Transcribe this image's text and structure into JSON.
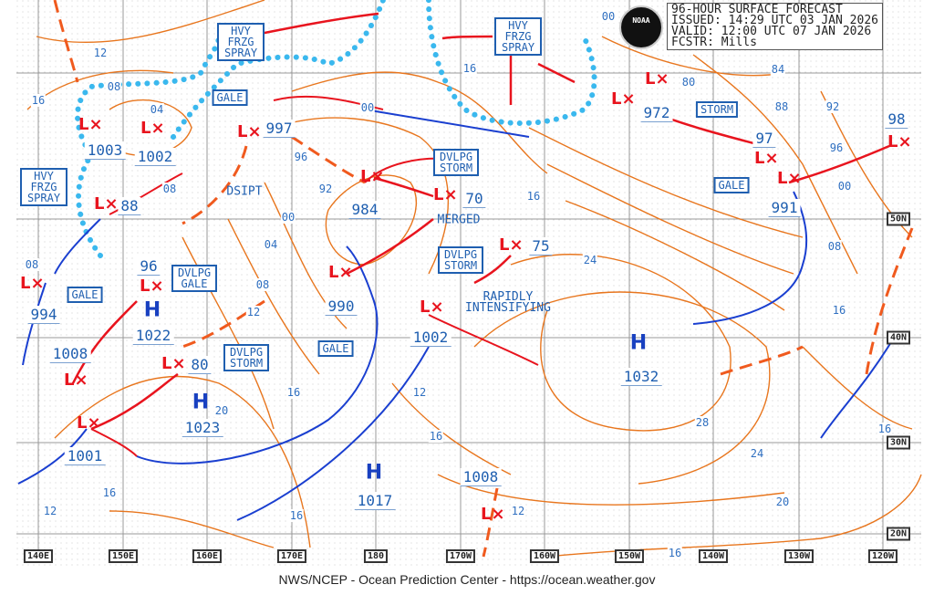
{
  "header": {
    "title": "96-HOUR SURFACE FORECAST",
    "issued": "ISSUED: 14:29 UTC 03 JAN 2026",
    "valid": "VALID:  12:00 UTC 07 JAN 2026",
    "forecaster": "FCSTR:  Mills"
  },
  "logo": "NOAA",
  "footer": "NWS/NCEP - Ocean Prediction Center - https://ocean.weather.gov",
  "longitude_labels": [
    "140E",
    "150E",
    "160E",
    "170E",
    "180",
    "170W",
    "160W",
    "150W",
    "140W",
    "130W",
    "120W"
  ],
  "latitude_labels": [
    "50N",
    "40N",
    "30N",
    "20N"
  ],
  "colors": {
    "isobar": "#e8761e",
    "cold_front": "#1a3fd0",
    "warm_front": "#e8141e",
    "occluded": "#8a2be2",
    "trough": "#f05a1e",
    "freezing_spray": "#3ab8ee",
    "text": "#1f5fb0"
  },
  "lows": [
    "1003",
    "1002",
    "88",
    "997",
    "984",
    "70",
    "75",
    "990",
    "1002",
    "994",
    "1008",
    "1001",
    "972",
    "97",
    "98",
    "991",
    "1008"
  ],
  "highs": [
    {
      "symbol": "H",
      "pressure": "1022"
    },
    {
      "symbol": "H",
      "pressure": "1023"
    },
    {
      "symbol": "H",
      "pressure": "1017"
    },
    {
      "symbol": "H",
      "pressure": "1032"
    }
  ],
  "developing": [
    "96",
    "80"
  ],
  "warnings": {
    "hvy_spray": "HVY FRZG SPRAY",
    "gale": "GALE",
    "storm": "STORM",
    "dvlpg_storm": "DVLPG STORM",
    "dvlpg_gale": "DVLPG GALE"
  },
  "notes": {
    "dsipt": "DSIPT",
    "merged": "MERGED",
    "rapidly": "RAPIDLY INTENSIFYING"
  },
  "isobar_labels": [
    "12",
    "16",
    "08",
    "04",
    "08",
    "00",
    "96",
    "92",
    "00",
    "04",
    "08",
    "12",
    "16",
    "20",
    "16",
    "12",
    "16",
    "24",
    "28",
    "24",
    "20",
    "16",
    "12",
    "16",
    "80",
    "84",
    "88",
    "92",
    "96",
    "00",
    "08",
    "16",
    "16",
    "12",
    "16",
    "00",
    "16",
    "08"
  ]
}
